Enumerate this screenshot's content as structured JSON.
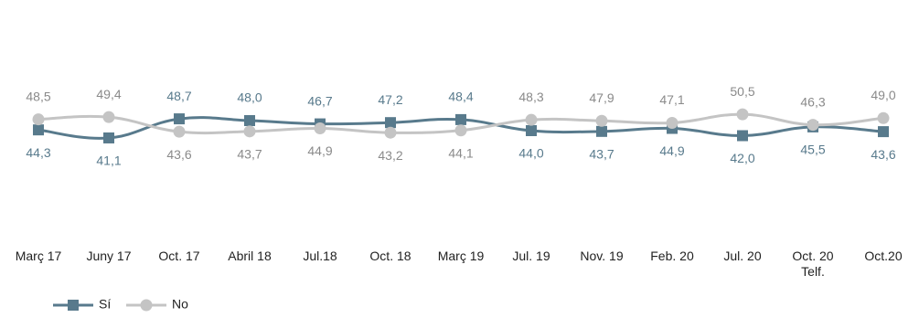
{
  "chart_data": {
    "type": "line",
    "categories": [
      "Març 17",
      "Juny 17",
      "Oct. 17",
      "Abril 18",
      "Jul.18",
      "Oct. 18",
      "Març 19",
      "Jul. 19",
      "Nov. 19",
      "Feb. 20",
      "Jul. 20",
      "Oct. 20\nTelf.",
      "Oct.20"
    ],
    "series": [
      {
        "name": "Sí",
        "color": "#587a8c",
        "marker": "square",
        "values": [
          44.3,
          41.1,
          48.7,
          48.0,
          46.7,
          47.2,
          48.4,
          44.0,
          43.7,
          44.9,
          42.0,
          45.5,
          43.6
        ],
        "value_labels": [
          "44,3",
          "41,1",
          "48,7",
          "48,0",
          "46,7",
          "47,2",
          "48,4",
          "44,0",
          "43,7",
          "44,9",
          "42,0",
          "45,5",
          "43,6"
        ]
      },
      {
        "name": "No",
        "color": "#c4c4c4",
        "marker": "circle",
        "values": [
          48.5,
          49.4,
          43.6,
          43.7,
          44.9,
          43.2,
          44.1,
          48.3,
          47.9,
          47.1,
          50.5,
          46.3,
          49.0
        ],
        "value_labels": [
          "48,5",
          "49,4",
          "43,6",
          "43,7",
          "44,9",
          "43,2",
          "44,1",
          "48,3",
          "47,9",
          "47,1",
          "50,5",
          "46,3",
          "49,0"
        ]
      }
    ],
    "legend": "bottom-left"
  }
}
